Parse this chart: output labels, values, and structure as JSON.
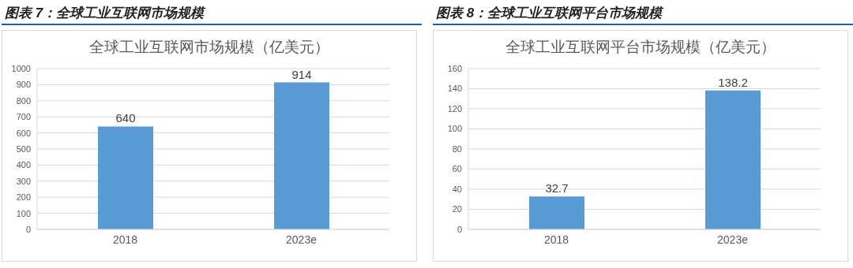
{
  "chart_data": [
    {
      "type": "bar",
      "title": "图表 7：全球工业互联网市场规模",
      "subtitle": "全球工业互联网市场规模（亿美元）",
      "categories": [
        "2018",
        "2023e"
      ],
      "values": [
        640,
        914
      ],
      "color": "#5b9bd5",
      "ylim": [
        0,
        1000
      ],
      "yticks": [
        0,
        100,
        200,
        300,
        400,
        500,
        600,
        700,
        800,
        900,
        1000
      ],
      "grid": "y",
      "data_labels": true
    },
    {
      "type": "bar",
      "title": "图表 8：全球工业互联网平台市场规模",
      "subtitle": "全球工业互联网平台市场规模（亿美元）",
      "categories": [
        "2018",
        "2023e"
      ],
      "values": [
        32.7,
        138.2
      ],
      "color": "#5b9bd5",
      "ylim": [
        0,
        160
      ],
      "yticks": [
        0,
        20,
        40,
        60,
        80,
        100,
        120,
        140,
        160
      ],
      "grid": "y",
      "data_labels": true
    }
  ]
}
